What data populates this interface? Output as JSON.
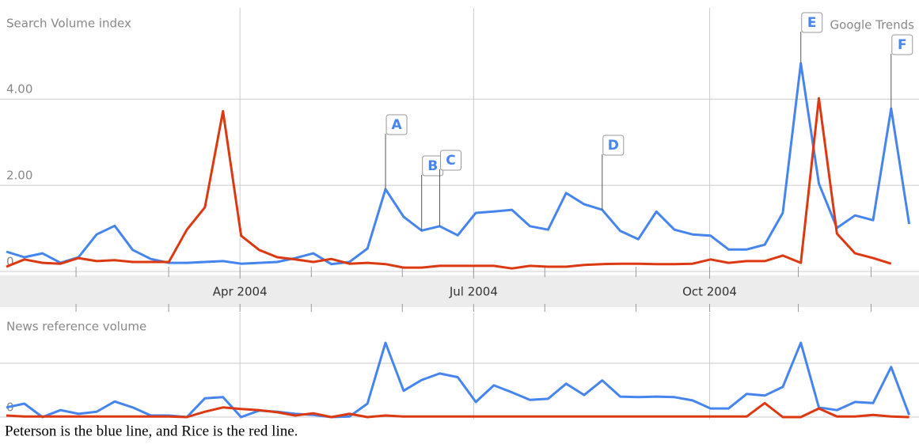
{
  "chart_data": [
    {
      "type": "line",
      "ylabel": "Search Volume index",
      "watermark": "Google Trends",
      "xlim": [
        0,
        50.5
      ],
      "xticks": [
        {
          "value": 12.94,
          "label": "Apr 2004"
        },
        {
          "value": 25.88,
          "label": "Jul 2004"
        },
        {
          "value": 38.95,
          "label": "Oct 2004"
        }
      ],
      "xminorticks": [
        3.86,
        8.99,
        16.89,
        21.93,
        29.82,
        34.87,
        43.86,
        47.89
      ],
      "ylim": [
        0,
        6.3
      ],
      "yticks": [
        0,
        {
          "value": 2,
          "label": "2.00"
        },
        {
          "value": 4,
          "label": "4.00"
        }
      ],
      "grid": true,
      "series": [
        {
          "name": "Peterson",
          "color": "#4684ee",
          "values": [
            0.46,
            0.33,
            0.42,
            0.2,
            0.33,
            0.86,
            1.06,
            0.5,
            0.29,
            0.2,
            0.2,
            0.22,
            0.24,
            0.18,
            0.2,
            0.22,
            0.31,
            0.42,
            0.17,
            0.22,
            0.53,
            1.91,
            1.27,
            0.95,
            1.05,
            0.84,
            1.36,
            1.39,
            1.43,
            1.05,
            0.97,
            1.82,
            1.56,
            1.43,
            0.94,
            0.75,
            1.39,
            0.97,
            0.86,
            0.83,
            0.51,
            0.51,
            0.62,
            1.36,
            4.83,
            2.04,
            1.01,
            1.3,
            1.19,
            3.78,
            1.1
          ]
        },
        {
          "name": "Rice",
          "color": "#dc3912",
          "values": [
            0.11,
            0.28,
            0.2,
            0.18,
            0.31,
            0.24,
            0.26,
            0.22,
            0.22,
            0.22,
            0.97,
            1.49,
            3.72,
            0.83,
            0.5,
            0.33,
            0.28,
            0.22,
            0.29,
            0.18,
            0.2,
            0.17,
            0.09,
            0.09,
            0.13,
            0.13,
            0.13,
            0.13,
            0.07,
            0.13,
            0.11,
            0.11,
            0.15,
            0.17,
            0.18,
            0.18,
            0.17,
            0.17,
            0.18,
            0.28,
            0.2,
            0.24,
            0.24,
            0.37,
            0.2,
            4.02,
            0.88,
            0.42,
            0.31,
            0.18,
            null
          ]
        }
      ],
      "annotations": [
        {
          "label": "A",
          "index": 21
        },
        {
          "label": "B",
          "index": 23
        },
        {
          "label": "C",
          "index": 24
        },
        {
          "label": "D",
          "index": 33
        },
        {
          "label": "E",
          "index": 44
        },
        {
          "label": "F",
          "index": 49
        }
      ]
    },
    {
      "type": "line",
      "ylabel": "News reference volume",
      "xlim": [
        0,
        50.5
      ],
      "ylim": [
        0,
        1.94
      ],
      "yticks": [
        0
      ],
      "ygrid": [
        1
      ],
      "grid": true,
      "series": [
        {
          "name": "Peterson",
          "color": "#4684ee",
          "values": [
            0.18,
            0.25,
            0,
            0.13,
            0.06,
            0.1,
            0.29,
            0.18,
            0.03,
            0.03,
            0,
            0.35,
            0.37,
            0,
            0.12,
            0.1,
            0.06,
            0.04,
            0,
            0.01,
            0.25,
            1.38,
            0.49,
            0.69,
            0.81,
            0.74,
            0.28,
            0.59,
            0.46,
            0.32,
            0.34,
            0.62,
            0.41,
            0.68,
            0.38,
            0.37,
            0.38,
            0.37,
            0.31,
            0.16,
            0.16,
            0.43,
            0.4,
            0.56,
            1.38,
            0.18,
            0.13,
            0.28,
            0.26,
            0.93,
            0.04
          ]
        },
        {
          "name": "Rice",
          "color": "#dc3912",
          "values": [
            0.03,
            0.01,
            0.01,
            0.01,
            0.01,
            0.01,
            0.01,
            0.01,
            0.01,
            0.01,
            0,
            0.1,
            0.18,
            0.15,
            0.13,
            0.09,
            0.03,
            0.07,
            0,
            0.06,
            0,
            0.03,
            0.01,
            0.01,
            0.01,
            0.01,
            0.01,
            0.01,
            0.01,
            0.01,
            0.01,
            0.01,
            0.01,
            0.01,
            0.01,
            0.01,
            0.01,
            0.01,
            0.01,
            0.01,
            0.01,
            0.01,
            0.26,
            0,
            0,
            0.16,
            0.01,
            0.01,
            0.04,
            0.01,
            0
          ]
        }
      ]
    }
  ],
  "caption": "Peterson is the blue line, and Rice is the red line."
}
